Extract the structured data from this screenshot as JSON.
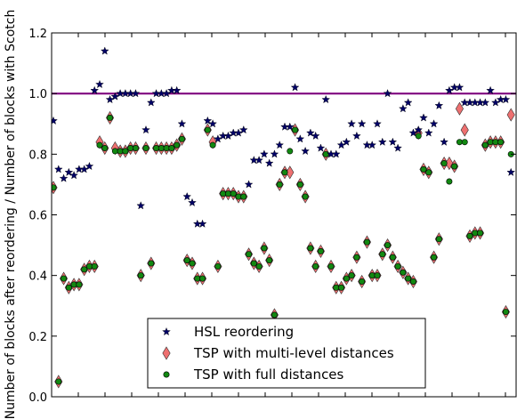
{
  "chart_data": {
    "type": "scatter",
    "title": "",
    "xlabel": "",
    "ylabel": "Number of blocks after reordering / Number of blocks with Scotch",
    "xlim": [
      0,
      180
    ],
    "ylim": [
      0.0,
      1.2
    ],
    "yticks": [
      "0.0",
      "0.2",
      "0.4",
      "0.6",
      "0.8",
      "1.0",
      "1.2"
    ],
    "grid": false,
    "legend": "bottom-center",
    "reference_line": {
      "y": 1.0,
      "color": "#800080"
    },
    "series": [
      {
        "name": "HSL reordering",
        "marker": "star",
        "color": "#000066",
        "x": [
          0,
          2,
          4,
          6,
          8,
          10,
          12,
          14,
          16,
          18,
          20,
          22,
          24,
          26,
          28,
          30,
          32,
          34,
          36,
          38,
          40,
          42,
          44,
          46,
          48,
          50,
          52,
          54,
          56,
          58,
          60,
          62,
          64,
          66,
          68,
          70,
          72,
          74,
          76,
          78,
          80,
          82,
          84,
          86,
          88,
          90,
          92,
          94,
          96,
          98,
          100,
          102,
          104,
          106,
          108,
          110,
          112,
          114,
          116,
          118,
          120,
          122,
          124,
          126,
          128,
          130,
          132,
          134,
          136,
          138,
          140,
          142,
          144,
          146,
          148,
          150,
          152,
          154,
          156,
          158,
          160,
          162,
          164,
          166,
          168,
          170,
          172,
          174,
          176,
          178
        ],
        "y": [
          0.91,
          0.75,
          0.72,
          0.74,
          0.73,
          0.75,
          0.75,
          0.76,
          1.01,
          1.03,
          1.14,
          0.98,
          0.99,
          1.0,
          1.0,
          1.0,
          1.0,
          0.63,
          0.88,
          0.97,
          1.0,
          1.0,
          1.0,
          1.01,
          1.01,
          0.9,
          0.66,
          0.64,
          0.57,
          0.57,
          0.91,
          0.9,
          0.85,
          0.86,
          0.86,
          0.87,
          0.87,
          0.88,
          0.7,
          0.78,
          0.78,
          0.8,
          0.77,
          0.8,
          0.83,
          0.89,
          0.89,
          1.02,
          0.85,
          0.81,
          0.87,
          0.86,
          0.82,
          0.98,
          0.8,
          0.8,
          0.83,
          0.84,
          0.9,
          0.86,
          0.9,
          0.83,
          0.83,
          0.9,
          0.84,
          1.0,
          0.84,
          0.82,
          0.95,
          0.97,
          0.87,
          0.88,
          0.92,
          0.87,
          0.9,
          0.96,
          0.84,
          1.01,
          1.02,
          1.02,
          0.97,
          0.97,
          0.97,
          0.97,
          0.97,
          1.01,
          0.97,
          0.98,
          0.98,
          0.74
        ]
      },
      {
        "name": "TSP with multi-level distances",
        "marker": "diamond",
        "color": "#ee7070",
        "x": [
          0,
          2,
          4,
          6,
          8,
          10,
          12,
          14,
          16,
          18,
          20,
          22,
          24,
          26,
          28,
          30,
          32,
          34,
          36,
          38,
          40,
          42,
          44,
          46,
          48,
          50,
          52,
          54,
          56,
          58,
          60,
          62,
          64,
          66,
          68,
          70,
          72,
          74,
          76,
          78,
          80,
          82,
          84,
          86,
          88,
          90,
          92,
          94,
          96,
          98,
          100,
          102,
          104,
          106,
          108,
          110,
          112,
          114,
          116,
          118,
          120,
          122,
          124,
          126,
          128,
          130,
          132,
          134,
          136,
          138,
          140,
          142,
          144,
          146,
          148,
          150,
          152,
          154,
          156,
          158,
          160,
          162,
          164,
          166,
          168,
          170,
          172,
          174,
          176,
          178
        ],
        "y": [
          0.69,
          0.05,
          0.39,
          0.36,
          0.37,
          0.37,
          0.42,
          0.43,
          0.43,
          0.84,
          0.82,
          0.92,
          0.82,
          0.81,
          0.81,
          0.82,
          0.82,
          0.4,
          0.82,
          0.44,
          0.82,
          0.82,
          0.82,
          0.82,
          0.83,
          0.85,
          0.45,
          0.44,
          0.39,
          0.39,
          0.88,
          0.84,
          0.43,
          0.67,
          0.67,
          0.67,
          0.66,
          0.66,
          0.47,
          0.44,
          0.43,
          0.49,
          0.45,
          0.27,
          0.7,
          0.74,
          0.74,
          0.88,
          0.7,
          0.66,
          0.49,
          0.43,
          0.48,
          0.8,
          0.43,
          0.36,
          0.36,
          0.39,
          0.4,
          0.46,
          0.38,
          0.51,
          0.4,
          0.4,
          0.47,
          0.5,
          0.46,
          0.43,
          0.41,
          0.39,
          0.38,
          0.87,
          0.75,
          0.74,
          0.46,
          0.52,
          0.77,
          0.77,
          0.76,
          0.95,
          0.88,
          0.53,
          0.54,
          0.54,
          0.83,
          0.84,
          0.84,
          0.84,
          0.28,
          0.93
        ]
      },
      {
        "name": "TSP with full distances",
        "marker": "circle",
        "color": "#118811",
        "x": [
          0,
          2,
          4,
          6,
          8,
          10,
          12,
          14,
          16,
          18,
          20,
          22,
          24,
          26,
          28,
          30,
          32,
          34,
          36,
          38,
          40,
          42,
          44,
          46,
          48,
          50,
          52,
          54,
          56,
          58,
          60,
          62,
          64,
          66,
          68,
          70,
          72,
          74,
          76,
          78,
          80,
          82,
          84,
          86,
          88,
          90,
          92,
          94,
          96,
          98,
          100,
          102,
          104,
          106,
          108,
          110,
          112,
          114,
          116,
          118,
          120,
          122,
          124,
          126,
          128,
          130,
          132,
          134,
          136,
          138,
          140,
          142,
          144,
          146,
          148,
          150,
          152,
          154,
          156,
          158,
          160,
          162,
          164,
          166,
          168,
          170,
          172,
          174,
          176,
          178
        ],
        "y": [
          0.69,
          0.05,
          0.39,
          0.36,
          0.37,
          0.37,
          0.42,
          0.43,
          0.43,
          0.83,
          0.82,
          0.92,
          0.81,
          0.81,
          0.81,
          0.82,
          0.82,
          0.4,
          0.82,
          0.44,
          0.82,
          0.82,
          0.82,
          0.82,
          0.83,
          0.85,
          0.45,
          0.44,
          0.39,
          0.39,
          0.88,
          0.83,
          0.43,
          0.67,
          0.67,
          0.67,
          0.66,
          0.66,
          0.47,
          0.44,
          0.43,
          0.49,
          0.45,
          0.27,
          0.7,
          0.74,
          0.81,
          0.88,
          0.7,
          0.66,
          0.49,
          0.43,
          0.48,
          0.8,
          0.43,
          0.36,
          0.36,
          0.39,
          0.4,
          0.46,
          0.38,
          0.51,
          0.4,
          0.4,
          0.47,
          0.5,
          0.46,
          0.43,
          0.41,
          0.39,
          0.38,
          0.86,
          0.75,
          0.74,
          0.46,
          0.52,
          0.77,
          0.71,
          0.76,
          0.84,
          0.84,
          0.53,
          0.54,
          0.54,
          0.83,
          0.84,
          0.84,
          0.84,
          0.28,
          0.8
        ]
      }
    ]
  }
}
